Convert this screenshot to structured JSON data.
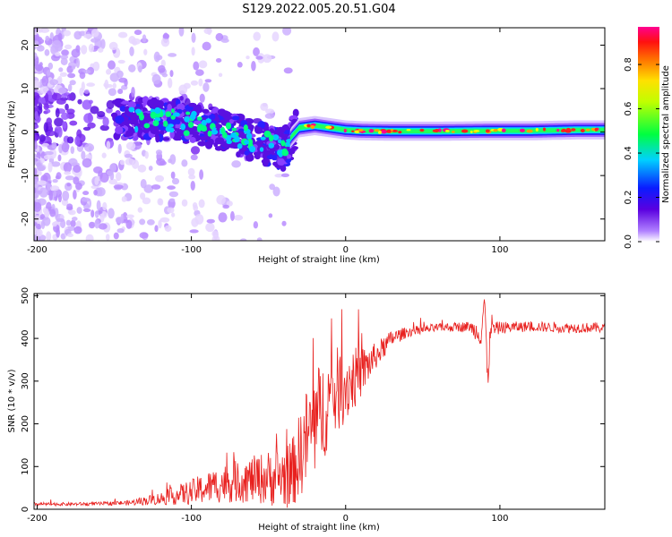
{
  "figure": {
    "title": "S129.2022.005.20.51.G04"
  },
  "chart_data": [
    {
      "type": "heatmap",
      "title": "",
      "xlabel": "Height of straight line (km)",
      "ylabel": "Frequency (Hz)",
      "xlim": [
        -202,
        168
      ],
      "ylim": [
        -25,
        24
      ],
      "xticks": [
        -200,
        -100,
        0,
        100
      ],
      "xtick_labels": [
        "-200",
        "-100",
        "0",
        "100"
      ],
      "yticks": [
        -20,
        -10,
        0,
        10,
        20
      ],
      "ytick_labels": [
        "-20",
        "-10",
        "0",
        "10",
        "20"
      ],
      "colorbar": {
        "label": "Normalized spectral amplitude",
        "range": [
          0.0,
          0.97
        ],
        "ticks": [
          0.0,
          0.2,
          0.4,
          0.6,
          0.8
        ],
        "tick_labels": [
          "0.0",
          "0.2",
          "0.4",
          "0.6",
          "0.8"
        ],
        "colormap": "rainbow (white-purple-blue-cyan-green-yellow-orange-red-magenta)"
      },
      "ridge": {
        "description": "Main spectral ridge near 0 Hz; scattered noise for heights below about -40 km",
        "x": [
          -140,
          -120,
          -100,
          -80,
          -60,
          -50,
          -40,
          -35,
          -30,
          -20,
          -10,
          0,
          10,
          30,
          60,
          90,
          120,
          150,
          168
        ],
        "freq": [
          3,
          3,
          2,
          0.5,
          -2,
          -3,
          -4,
          -1,
          1,
          1.5,
          1,
          0.5,
          0.3,
          0.2,
          0.2,
          0.3,
          0.3,
          0.5,
          0.5
        ]
      }
    },
    {
      "type": "line",
      "title": "",
      "xlabel": "Height of straight line (km)",
      "ylabel": "SNR (10 * v/v)",
      "xlim": [
        -202,
        168
      ],
      "ylim": [
        0,
        505
      ],
      "xticks": [
        -200,
        -100,
        0,
        100
      ],
      "xtick_labels": [
        "-200",
        "-100",
        "0",
        "100"
      ],
      "yticks": [
        0,
        100,
        200,
        300,
        400,
        500
      ],
      "ytick_labels": [
        "0",
        "100",
        "200",
        "300",
        "400",
        "500"
      ],
      "color": "#e8201e",
      "series": [
        {
          "name": "SNR",
          "x": [
            -202,
            -180,
            -160,
            -140,
            -120,
            -100,
            -80,
            -60,
            -45,
            -35,
            -25,
            -20,
            -15,
            -10,
            -5,
            0,
            10,
            20,
            30,
            40,
            60,
            80,
            88,
            90,
            92,
            94,
            96,
            100,
            120,
            140,
            168
          ],
          "y": [
            12,
            12,
            13,
            15,
            25,
            40,
            60,
            70,
            75,
            80,
            170,
            200,
            230,
            260,
            280,
            290,
            320,
            360,
            400,
            415,
            425,
            428,
            410,
            500,
            290,
            440,
            420,
            425,
            428,
            425,
            425
          ],
          "noise_amplitude": [
            4,
            4,
            4,
            6,
            15,
            30,
            45,
            55,
            70,
            80,
            120,
            130,
            120,
            110,
            100,
            90,
            60,
            30,
            20,
            12,
            10,
            12,
            30,
            40,
            40,
            30,
            20,
            14,
            12,
            12,
            12
          ]
        }
      ]
    }
  ]
}
